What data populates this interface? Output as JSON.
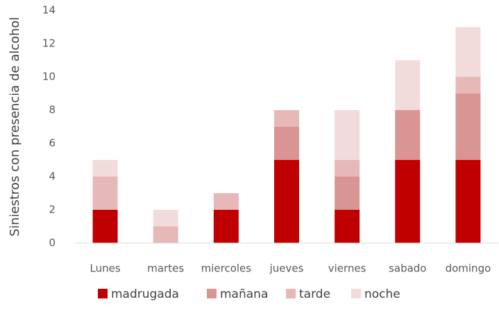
{
  "chart_data": {
    "type": "bar",
    "stacked": true,
    "y_label": "Siniestros con presencia de alcohol",
    "categories": [
      "Lunes",
      "martes",
      "miercoles",
      "jueves",
      "viernes",
      "sabado",
      "domingo"
    ],
    "series": [
      {
        "name": "madrugada",
        "color": "#c00000",
        "values": [
          2,
          0,
          2,
          5,
          2,
          5,
          5
        ]
      },
      {
        "name": "mañana",
        "color": "#d99594",
        "values": [
          0,
          0,
          0,
          2,
          2,
          3,
          4
        ]
      },
      {
        "name": "tarde",
        "color": "#e6b9b8",
        "values": [
          2,
          1,
          1,
          1,
          1,
          0,
          1
        ]
      },
      {
        "name": "noche",
        "color": "#f2dcdb",
        "values": [
          1,
          1,
          0,
          0,
          3,
          3,
          3
        ]
      }
    ],
    "ylim": [
      0,
      14
    ],
    "yticks": [
      0,
      2,
      4,
      6,
      8,
      10,
      12,
      14
    ],
    "grid": false,
    "legend": "bottom"
  }
}
